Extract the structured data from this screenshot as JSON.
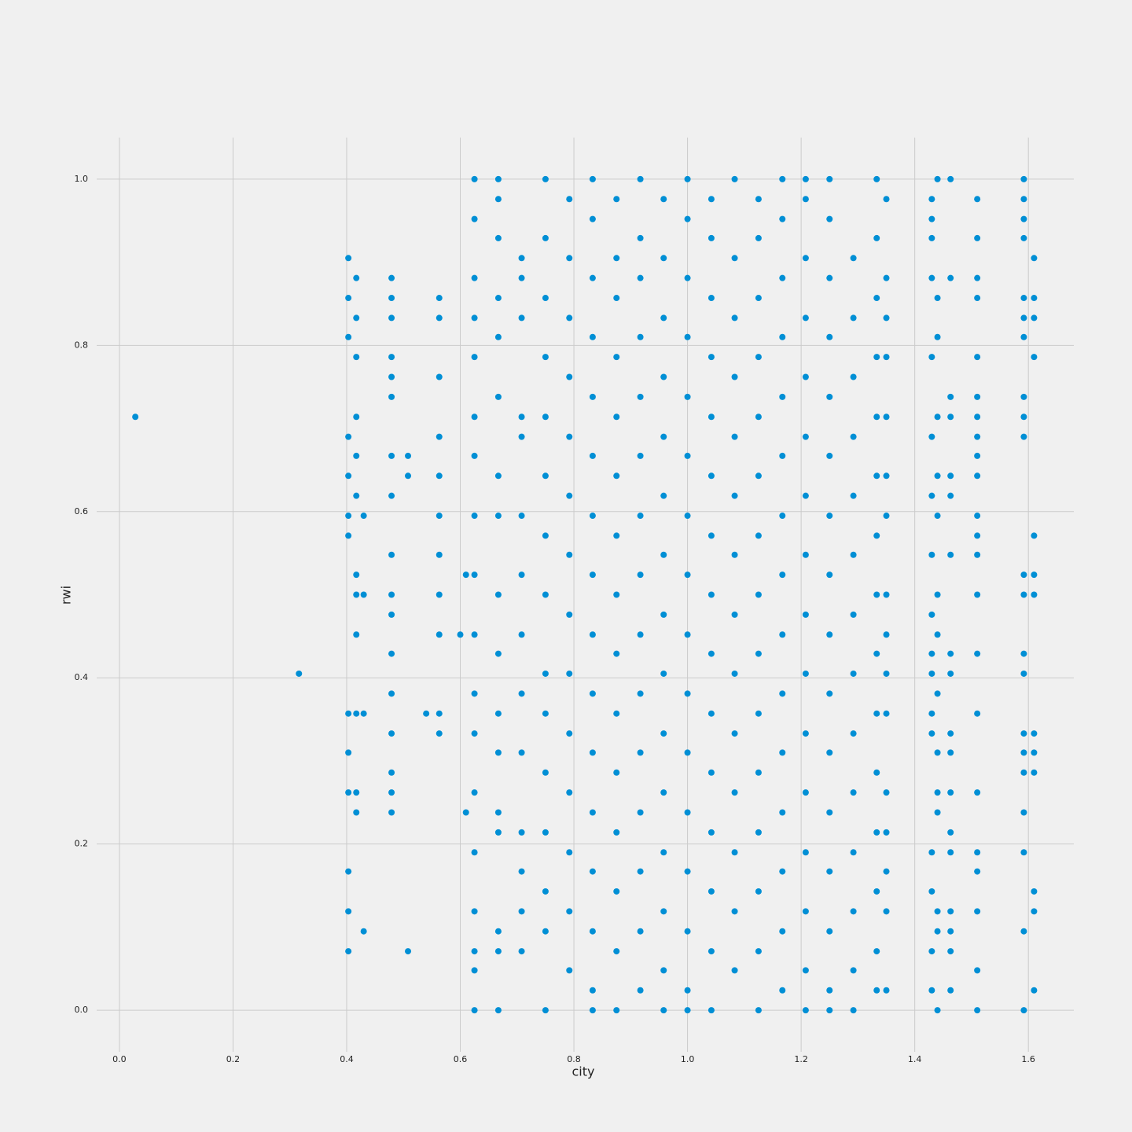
{
  "chart_data": {
    "type": "scatter",
    "x_label": "city",
    "y_label": "rwi",
    "color": "#008fd5",
    "grid": true,
    "xlim": [
      -0.04,
      1.68
    ],
    "ylim": [
      -0.05,
      1.05
    ],
    "xticks": [
      {
        "value": 0,
        "label": "0.0"
      },
      0.2,
      0.4,
      0.6,
      0.8,
      {
        "value": 1,
        "label": "1.0"
      },
      1.2,
      1.4,
      1.6
    ],
    "yticks": [
      {
        "value": 0,
        "label": "0.0"
      },
      0.2,
      0.4,
      0.6,
      0.8,
      {
        "value": 1,
        "label": "1.0"
      }
    ],
    "x": [
      0.028,
      0.316,
      0.403,
      0.403,
      0.403,
      0.403,
      0.403,
      0.403,
      0.403,
      0.403,
      0.403,
      0.403,
      0.403,
      0.403,
      0.403,
      0.417,
      0.417,
      0.417,
      0.417,
      0.417,
      0.417,
      0.417,
      0.417,
      0.417,
      0.417,
      0.417,
      0.417,
      0.43,
      0.43,
      0.43,
      0.43,
      0.479,
      0.479,
      0.479,
      0.479,
      0.479,
      0.479,
      0.479,
      0.479,
      0.479,
      0.479,
      0.479,
      0.479,
      0.479,
      0.479,
      0.479,
      0.479,
      0.479,
      0.508,
      0.508,
      0.508,
      0.54,
      0.563,
      0.563,
      0.563,
      0.563,
      0.563,
      0.563,
      0.563,
      0.563,
      0.563,
      0.563,
      0.563,
      0.6,
      0.61,
      0.61,
      0.625,
      0.625,
      0.625,
      0.625,
      0.625,
      0.625,
      0.625,
      0.625,
      0.625,
      0.625,
      0.625,
      0.625,
      0.625,
      0.625,
      0.625,
      0.625,
      0.625,
      0.625,
      0.667,
      0.667,
      0.667,
      0.667,
      0.667,
      0.667,
      0.667,
      0.667,
      0.667,
      0.667,
      0.667,
      0.667,
      0.667,
      0.667,
      0.667,
      0.667,
      0.667,
      0.708,
      0.708,
      0.708,
      0.708,
      0.708,
      0.708,
      0.708,
      0.708,
      0.708,
      0.708,
      0.708,
      0.708,
      0.708,
      0.708,
      0.75,
      0.75,
      0.75,
      0.75,
      0.75,
      0.75,
      0.75,
      0.75,
      0.75,
      0.75,
      0.75,
      0.75,
      0.75,
      0.75,
      0.75,
      0.792,
      0.792,
      0.792,
      0.792,
      0.792,
      0.792,
      0.792,
      0.792,
      0.792,
      0.792,
      0.792,
      0.792,
      0.792,
      0.792,
      0.833,
      0.833,
      0.833,
      0.833,
      0.833,
      0.833,
      0.833,
      0.833,
      0.833,
      0.833,
      0.833,
      0.833,
      0.833,
      0.833,
      0.833,
      0.833,
      0.875,
      0.875,
      0.875,
      0.875,
      0.875,
      0.875,
      0.875,
      0.875,
      0.875,
      0.875,
      0.875,
      0.875,
      0.875,
      0.875,
      0.875,
      0.917,
      0.917,
      0.917,
      0.917,
      0.917,
      0.917,
      0.917,
      0.917,
      0.917,
      0.917,
      0.917,
      0.917,
      0.917,
      0.917,
      0.917,
      0.958,
      0.958,
      0.958,
      0.958,
      0.958,
      0.958,
      0.958,
      0.958,
      0.958,
      0.958,
      0.958,
      0.958,
      0.958,
      0.958,
      0.958,
      1.0,
      1.0,
      1.0,
      1.0,
      1.0,
      1.0,
      1.0,
      1.0,
      1.0,
      1.0,
      1.0,
      1.0,
      1.0,
      1.0,
      1.0,
      1.0,
      1.042,
      1.042,
      1.042,
      1.042,
      1.042,
      1.042,
      1.042,
      1.042,
      1.042,
      1.042,
      1.042,
      1.042,
      1.042,
      1.042,
      1.042,
      1.083,
      1.083,
      1.083,
      1.083,
      1.083,
      1.083,
      1.083,
      1.083,
      1.083,
      1.083,
      1.083,
      1.083,
      1.083,
      1.083,
      1.125,
      1.125,
      1.125,
      1.125,
      1.125,
      1.125,
      1.125,
      1.125,
      1.125,
      1.125,
      1.125,
      1.125,
      1.125,
      1.125,
      1.125,
      1.167,
      1.167,
      1.167,
      1.167,
      1.167,
      1.167,
      1.167,
      1.167,
      1.167,
      1.167,
      1.167,
      1.167,
      1.167,
      1.167,
      1.167,
      1.208,
      1.208,
      1.208,
      1.208,
      1.208,
      1.208,
      1.208,
      1.208,
      1.208,
      1.208,
      1.208,
      1.208,
      1.208,
      1.208,
      1.208,
      1.208,
      1.25,
      1.25,
      1.25,
      1.25,
      1.25,
      1.25,
      1.25,
      1.25,
      1.25,
      1.25,
      1.25,
      1.25,
      1.25,
      1.25,
      1.25,
      1.25,
      1.292,
      1.292,
      1.292,
      1.292,
      1.292,
      1.292,
      1.292,
      1.292,
      1.292,
      1.292,
      1.292,
      1.292,
      1.292,
      1.292,
      1.333,
      1.333,
      1.333,
      1.333,
      1.333,
      1.333,
      1.333,
      1.333,
      1.333,
      1.333,
      1.333,
      1.333,
      1.333,
      1.333,
      1.333,
      1.35,
      1.35,
      1.35,
      1.35,
      1.35,
      1.35,
      1.35,
      1.35,
      1.35,
      1.35,
      1.35,
      1.35,
      1.35,
      1.35,
      1.35,
      1.35,
      1.43,
      1.43,
      1.43,
      1.43,
      1.43,
      1.43,
      1.43,
      1.43,
      1.43,
      1.43,
      1.43,
      1.43,
      1.43,
      1.43,
      1.43,
      1.43,
      1.43,
      1.44,
      1.44,
      1.44,
      1.44,
      1.44,
      1.44,
      1.44,
      1.44,
      1.44,
      1.44,
      1.44,
      1.44,
      1.44,
      1.44,
      1.44,
      1.463,
      1.463,
      1.463,
      1.463,
      1.463,
      1.463,
      1.463,
      1.463,
      1.463,
      1.463,
      1.463,
      1.463,
      1.463,
      1.463,
      1.463,
      1.463,
      1.463,
      1.463,
      1.51,
      1.51,
      1.51,
      1.51,
      1.51,
      1.51,
      1.51,
      1.51,
      1.51,
      1.51,
      1.51,
      1.51,
      1.51,
      1.51,
      1.51,
      1.51,
      1.51,
      1.51,
      1.51,
      1.51,
      1.51,
      1.51,
      1.592,
      1.592,
      1.592,
      1.592,
      1.592,
      1.592,
      1.592,
      1.592,
      1.592,
      1.592,
      1.592,
      1.592,
      1.592,
      1.592,
      1.592,
      1.592,
      1.592,
      1.592,
      1.592,
      1.592,
      1.592,
      1.61,
      1.61,
      1.61,
      1.61,
      1.61,
      1.61,
      1.61,
      1.61,
      1.61,
      1.61,
      1.61,
      1.61,
      1.61
    ],
    "values": [
      0.714,
      0.405,
      0.905,
      0.857,
      0.81,
      0.69,
      0.643,
      0.595,
      0.571,
      0.357,
      0.31,
      0.262,
      0.167,
      0.119,
      0.071,
      0.881,
      0.833,
      0.786,
      0.714,
      0.667,
      0.619,
      0.524,
      0.5,
      0.452,
      0.357,
      0.262,
      0.238,
      0.595,
      0.5,
      0.357,
      0.095,
      0.881,
      0.857,
      0.833,
      0.786,
      0.762,
      0.738,
      0.667,
      0.619,
      0.548,
      0.5,
      0.476,
      0.429,
      0.381,
      0.333,
      0.286,
      0.262,
      0.238,
      0.667,
      0.643,
      0.071,
      0.357,
      0.857,
      0.833,
      0.762,
      0.69,
      0.643,
      0.595,
      0.548,
      0.5,
      0.452,
      0.357,
      0.333,
      0.452,
      0.238,
      0.524,
      1.0,
      0.952,
      0.881,
      0.833,
      0.786,
      0.714,
      0.667,
      0.595,
      0.524,
      0.452,
      0.381,
      0.333,
      0.262,
      0.19,
      0.119,
      0.071,
      0.048,
      0.0,
      1.0,
      0.976,
      0.929,
      0.857,
      0.81,
      0.738,
      0.643,
      0.595,
      0.5,
      0.429,
      0.357,
      0.31,
      0.238,
      0.214,
      0.095,
      0.071,
      0.0,
      0.905,
      0.881,
      0.833,
      0.714,
      0.69,
      0.595,
      0.524,
      0.452,
      0.381,
      0.31,
      0.214,
      0.167,
      0.119,
      0.071,
      1.0,
      0.929,
      0.857,
      0.786,
      0.714,
      0.643,
      0.571,
      0.5,
      0.405,
      0.357,
      0.286,
      0.214,
      0.143,
      0.095,
      0.0,
      0.976,
      0.905,
      0.833,
      0.762,
      0.69,
      0.619,
      0.548,
      0.476,
      0.405,
      0.333,
      0.262,
      0.19,
      0.119,
      0.048,
      1.0,
      0.952,
      0.881,
      0.81,
      0.738,
      0.667,
      0.595,
      0.524,
      0.452,
      0.381,
      0.31,
      0.238,
      0.167,
      0.095,
      0.024,
      0.0,
      0.976,
      0.905,
      0.857,
      0.786,
      0.714,
      0.643,
      0.571,
      0.5,
      0.429,
      0.357,
      0.286,
      0.214,
      0.143,
      0.071,
      0.0,
      1.0,
      0.929,
      0.881,
      0.81,
      0.738,
      0.667,
      0.595,
      0.524,
      0.452,
      0.381,
      0.31,
      0.238,
      0.167,
      0.095,
      0.024,
      0.976,
      0.905,
      0.833,
      0.762,
      0.69,
      0.619,
      0.548,
      0.476,
      0.405,
      0.333,
      0.262,
      0.19,
      0.119,
      0.048,
      0.0,
      1.0,
      0.952,
      0.881,
      0.81,
      0.738,
      0.667,
      0.595,
      0.524,
      0.452,
      0.381,
      0.31,
      0.238,
      0.167,
      0.095,
      0.024,
      0.0,
      0.976,
      0.929,
      0.857,
      0.786,
      0.714,
      0.643,
      0.571,
      0.5,
      0.429,
      0.357,
      0.286,
      0.214,
      0.143,
      0.071,
      0.0,
      1.0,
      0.905,
      0.833,
      0.762,
      0.69,
      0.619,
      0.548,
      0.476,
      0.405,
      0.333,
      0.262,
      0.19,
      0.119,
      0.048,
      0.976,
      0.929,
      0.857,
      0.786,
      0.714,
      0.643,
      0.571,
      0.5,
      0.429,
      0.357,
      0.286,
      0.214,
      0.143,
      0.071,
      0.0,
      1.0,
      0.952,
      0.881,
      0.81,
      0.738,
      0.667,
      0.595,
      0.524,
      0.452,
      0.381,
      0.31,
      0.238,
      0.167,
      0.095,
      0.024,
      1.0,
      0.976,
      0.905,
      0.833,
      0.762,
      0.69,
      0.619,
      0.548,
      0.476,
      0.405,
      0.333,
      0.262,
      0.19,
      0.119,
      0.048,
      0.0,
      1.0,
      0.952,
      0.881,
      0.81,
      0.738,
      0.667,
      0.595,
      0.524,
      0.452,
      0.381,
      0.31,
      0.238,
      0.167,
      0.095,
      0.024,
      0.0,
      0.905,
      0.833,
      0.762,
      0.69,
      0.619,
      0.548,
      0.476,
      0.405,
      0.333,
      0.262,
      0.19,
      0.119,
      0.048,
      0.0,
      1.0,
      0.929,
      0.857,
      0.786,
      0.714,
      0.643,
      0.571,
      0.5,
      0.429,
      0.357,
      0.286,
      0.214,
      0.143,
      0.071,
      0.024,
      0.976,
      0.881,
      0.833,
      0.786,
      0.714,
      0.643,
      0.595,
      0.5,
      0.452,
      0.405,
      0.357,
      0.262,
      0.214,
      0.167,
      0.119,
      0.024,
      0.976,
      0.952,
      0.929,
      0.881,
      0.786,
      0.69,
      0.619,
      0.548,
      0.476,
      0.429,
      0.405,
      0.357,
      0.333,
      0.19,
      0.143,
      0.071,
      0.024,
      1.0,
      0.857,
      0.81,
      0.714,
      0.643,
      0.595,
      0.5,
      0.452,
      0.381,
      0.31,
      0.262,
      0.238,
      0.119,
      0.095,
      0.0,
      1.0,
      0.881,
      0.738,
      0.714,
      0.643,
      0.619,
      0.548,
      0.429,
      0.405,
      0.333,
      0.31,
      0.262,
      0.214,
      0.19,
      0.119,
      0.095,
      0.071,
      0.024,
      0.976,
      0.929,
      0.881,
      0.857,
      0.786,
      0.738,
      0.714,
      0.69,
      0.667,
      0.643,
      0.595,
      0.571,
      0.548,
      0.5,
      0.429,
      0.357,
      0.262,
      0.19,
      0.167,
      0.119,
      0.048,
      0.0,
      1.0,
      0.976,
      0.952,
      0.929,
      0.857,
      0.833,
      0.81,
      0.738,
      0.714,
      0.69,
      0.524,
      0.5,
      0.429,
      0.405,
      0.333,
      0.31,
      0.286,
      0.238,
      0.19,
      0.095,
      0.0,
      0.905,
      0.857,
      0.833,
      0.786,
      0.571,
      0.524,
      0.5,
      0.333,
      0.31,
      0.286,
      0.143,
      0.119,
      0.024
    ]
  }
}
